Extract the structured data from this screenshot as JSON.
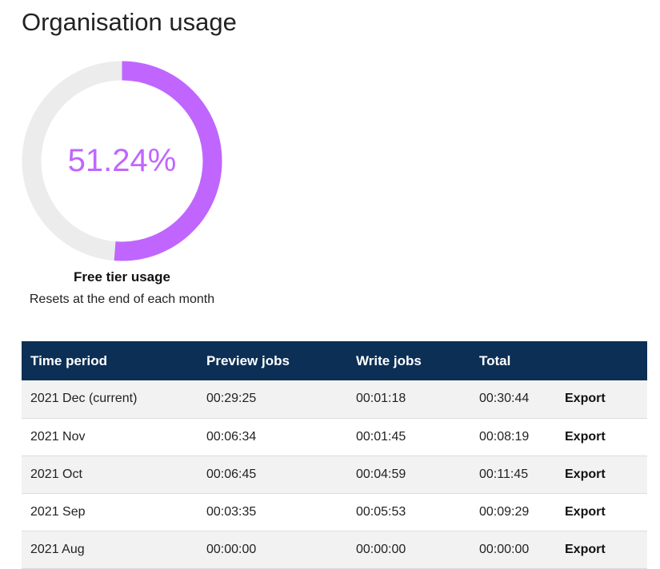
{
  "page": {
    "title": "Organisation usage"
  },
  "usage": {
    "percent_label": "51.24%",
    "percent_value": 51.24,
    "label": "Free tier usage",
    "sublabel": "Resets at the end of each month",
    "ring_color": "#c066ff",
    "track_color": "#ececec"
  },
  "table": {
    "header_bg": "#0c2f55",
    "headers": {
      "time_period": "Time period",
      "preview_jobs": "Preview jobs",
      "write_jobs": "Write jobs",
      "total": "Total",
      "action": ""
    },
    "rows": [
      {
        "period": "2021 Dec (current)",
        "preview": "00:29:25",
        "write": "00:01:18",
        "total": "00:30:44",
        "action": "Export"
      },
      {
        "period": "2021 Nov",
        "preview": "00:06:34",
        "write": "00:01:45",
        "total": "00:08:19",
        "action": "Export"
      },
      {
        "period": "2021 Oct",
        "preview": "00:06:45",
        "write": "00:04:59",
        "total": "00:11:45",
        "action": "Export"
      },
      {
        "period": "2021 Sep",
        "preview": "00:03:35",
        "write": "00:05:53",
        "total": "00:09:29",
        "action": "Export"
      },
      {
        "period": "2021 Aug",
        "preview": "00:00:00",
        "write": "00:00:00",
        "total": "00:00:00",
        "action": "Export"
      }
    ]
  }
}
